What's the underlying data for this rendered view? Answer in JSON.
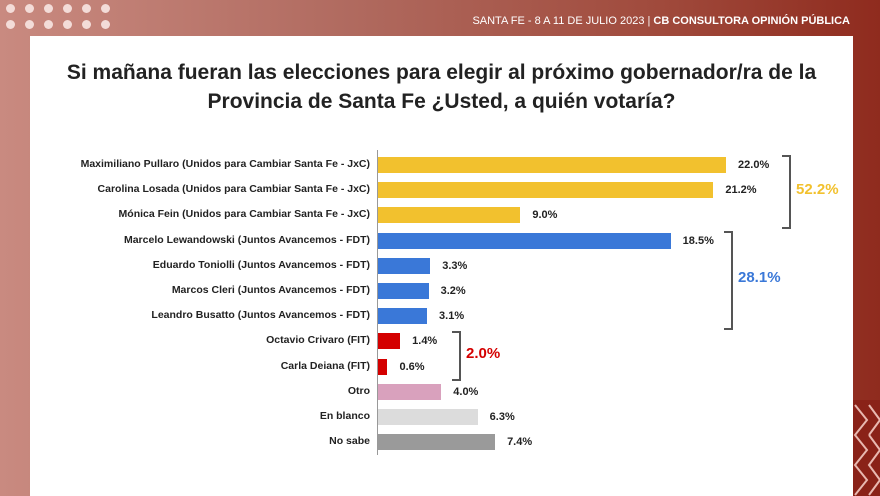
{
  "header": {
    "left": "SANTA FE  - 8 A 11 DE JULIO 2023 | ",
    "right": "CB CONSULTORA OPINIÓN PÚBLICA"
  },
  "chart_data": {
    "type": "bar",
    "title": "Si mañana fueran las elecciones para elegir al próximo gobernador/ra de la Provincia de Santa Fe ¿Usted, a quién votaría?",
    "categories": [
      "Maximiliano Pullaro (Unidos para Cambiar Santa Fe - JxC)",
      "Carolina Losada (Unidos para Cambiar Santa Fe - JxC)",
      "Mónica Fein (Unidos para Cambiar Santa Fe - JxC)",
      "Marcelo Lewandowski (Juntos Avancemos - FDT)",
      "Eduardo Toniolli (Juntos Avancemos - FDT)",
      "Marcos Cleri (Juntos Avancemos - FDT)",
      "Leandro Busatto (Juntos Avancemos - FDT)",
      "Octavio Crivaro (FIT)",
      "Carla Deiana (FIT)",
      "Otro",
      "En blanco",
      "No sabe"
    ],
    "values": [
      22.0,
      21.2,
      9.0,
      18.5,
      3.3,
      3.2,
      3.1,
      1.4,
      0.6,
      4.0,
      6.3,
      7.4
    ],
    "value_labels": [
      "22.0%",
      "21.2%",
      "9.0%",
      "18.5%",
      "3.3%",
      "3.2%",
      "3.1%",
      "1.4%",
      "0.6%",
      "4.0%",
      "6.3%",
      "7.4%"
    ],
    "colors": [
      "#f2c12e",
      "#f2c12e",
      "#f2c12e",
      "#3a78d8",
      "#3a78d8",
      "#3a78d8",
      "#3a78d8",
      "#d40000",
      "#d40000",
      "#d9a1bd",
      "#dcdcdc",
      "#9a9a9a"
    ],
    "groups": [
      {
        "label": "52.2%",
        "from": 0,
        "to": 2,
        "color": "#f2c12e"
      },
      {
        "label": "28.1%",
        "from": 3,
        "to": 6,
        "color": "#3a78d8"
      },
      {
        "label": "2.0%",
        "from": 7,
        "to": 8,
        "color": "#d40000"
      }
    ]
  }
}
